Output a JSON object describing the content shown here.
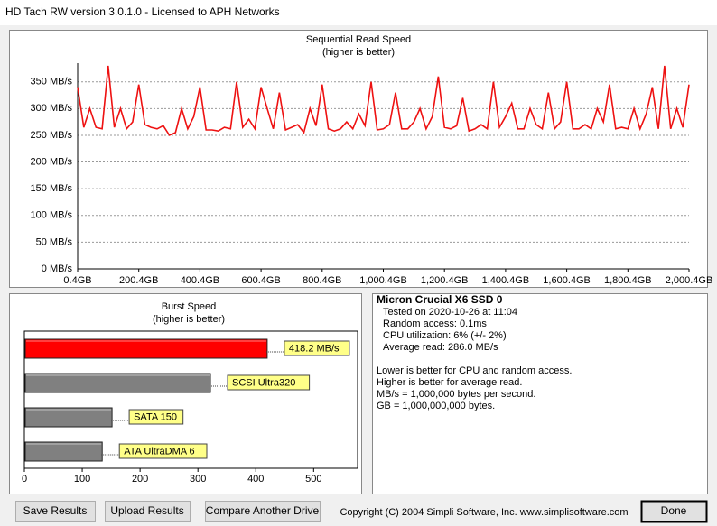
{
  "window": {
    "title": "HD Tach RW version 3.0.1.0 - Licensed to APH Networks"
  },
  "chart_data": [
    {
      "type": "line",
      "title": "Sequential Read Speed",
      "subtitle": "(higher is better)",
      "x": [
        0.4,
        20.4,
        40.4,
        60.4,
        80.4,
        100.4,
        120.4,
        140.4,
        160.4,
        180.4,
        200.4,
        220.4,
        240.4,
        260.4,
        280.4,
        300.4,
        320.4,
        340.4,
        360.4,
        380.4,
        400.4,
        420.4,
        440.4,
        460.4,
        480.4,
        500.4,
        520.4,
        540.4,
        560.4,
        580.4,
        600.4,
        620.4,
        640.4,
        660.4,
        680.4,
        700.4,
        720.4,
        740.4,
        760.4,
        780.4,
        800.4,
        820.4,
        840.4,
        860.4,
        880.4,
        900.4,
        920.4,
        940.4,
        960.4,
        980.4,
        1000.4,
        1020.4,
        1040.4,
        1060.4,
        1080.4,
        1100.4,
        1120.4,
        1140.4,
        1160.4,
        1180.4,
        1200.4,
        1220.4,
        1240.4,
        1260.4,
        1280.4,
        1300.4,
        1320.4,
        1340.4,
        1360.4,
        1380.4,
        1400.4,
        1420.4,
        1440.4,
        1460.4,
        1480.4,
        1500.4,
        1520.4,
        1540.4,
        1560.4,
        1580.4,
        1600.4,
        1620.4,
        1640.4,
        1660.4,
        1680.4,
        1700.4,
        1720.4,
        1740.4,
        1760.4,
        1780.4,
        1800.4,
        1820.4,
        1840.4,
        1860.4,
        1880.4,
        1900.4,
        1920.4,
        1940.4,
        1960.4,
        1980.4,
        2000.4
      ],
      "series": [
        {
          "color": "#ee1111",
          "values": [
            340,
            265,
            300,
            265,
            262,
            380,
            265,
            300,
            262,
            275,
            345,
            270,
            265,
            262,
            268,
            250,
            255,
            300,
            262,
            285,
            340,
            260,
            260,
            258,
            265,
            262,
            350,
            265,
            280,
            262,
            340,
            300,
            262,
            330,
            260,
            265,
            270,
            255,
            300,
            268,
            345,
            262,
            258,
            262,
            275,
            262,
            290,
            268,
            350,
            260,
            262,
            270,
            330,
            262,
            262,
            275,
            300,
            262,
            285,
            360,
            265,
            262,
            268,
            320,
            258,
            262,
            270,
            262,
            350,
            265,
            285,
            310,
            262,
            262,
            300,
            270,
            262,
            330,
            262,
            275,
            350,
            262,
            262,
            270,
            262,
            300,
            275,
            345,
            262,
            265,
            262,
            300,
            262,
            290,
            340,
            262,
            380,
            262,
            300,
            265,
            345
          ]
        }
      ],
      "xlim": [
        0.4,
        2000.4
      ],
      "xticks": [
        {
          "value": 0.4,
          "label": "0.4GB"
        },
        {
          "value": 200.4,
          "label": "200.4GB"
        },
        {
          "value": 400.4,
          "label": "400.4GB"
        },
        {
          "value": 600.4,
          "label": "600.4GB"
        },
        {
          "value": 800.4,
          "label": "800.4GB"
        },
        {
          "value": 1000.4,
          "label": "1,000.4GB"
        },
        {
          "value": 1200.4,
          "label": "1,200.4GB"
        },
        {
          "value": 1400.4,
          "label": "1,400.4GB"
        },
        {
          "value": 1600.4,
          "label": "1,600.4GB"
        },
        {
          "value": 1800.4,
          "label": "1,800.4GB"
        },
        {
          "value": 2000.4,
          "label": "2,000.4GB"
        }
      ],
      "ylim": [
        0,
        385
      ],
      "yticks": [
        {
          "value": 0,
          "label": "0 MB/s"
        },
        {
          "value": 50,
          "label": "50 MB/s"
        },
        {
          "value": 100,
          "label": "100 MB/s"
        },
        {
          "value": 150,
          "label": "150 MB/s"
        },
        {
          "value": 200,
          "label": "200 MB/s"
        },
        {
          "value": 250,
          "label": "250 MB/s"
        },
        {
          "value": 300,
          "label": "300 MB/s"
        },
        {
          "value": 350,
          "label": "350 MB/s"
        }
      ],
      "grid": true
    },
    {
      "type": "hbar",
      "title": "Burst Speed",
      "subtitle": "(higher is better)",
      "categories": [
        null,
        "SCSI Ultra320",
        "SATA 150",
        "ATA UltraDMA 6"
      ],
      "values": [
        418.2,
        320,
        150,
        133
      ],
      "value_labels": [
        "418.2 MB/s",
        null,
        null,
        null
      ],
      "colors": [
        "#ff0000",
        "#808080",
        "#808080",
        "#808080"
      ],
      "xlim": [
        0,
        576
      ],
      "xticks": [
        0,
        100,
        200,
        300,
        400,
        500
      ]
    }
  ],
  "info": {
    "drive": "Micron Crucial X6 SSD 0",
    "lines": [
      "Tested on 2020-10-26 at 11:04",
      "Random access: 0.1ms",
      "CPU utilization: 6% (+/- 2%)",
      "Average read: 286.0 MB/s"
    ],
    "notes": [
      "Lower is better for CPU and random access.",
      "Higher is better for average read.",
      "MB/s = 1,000,000 bytes per second.",
      "GB = 1,000,000,000 bytes."
    ]
  },
  "buttons": [
    "Save Results",
    "Upload Results",
    "Compare Another Drive",
    "Done"
  ],
  "copyright": "Copyright (C) 2004 Simpli Software, Inc. www.simplisoftware.com"
}
